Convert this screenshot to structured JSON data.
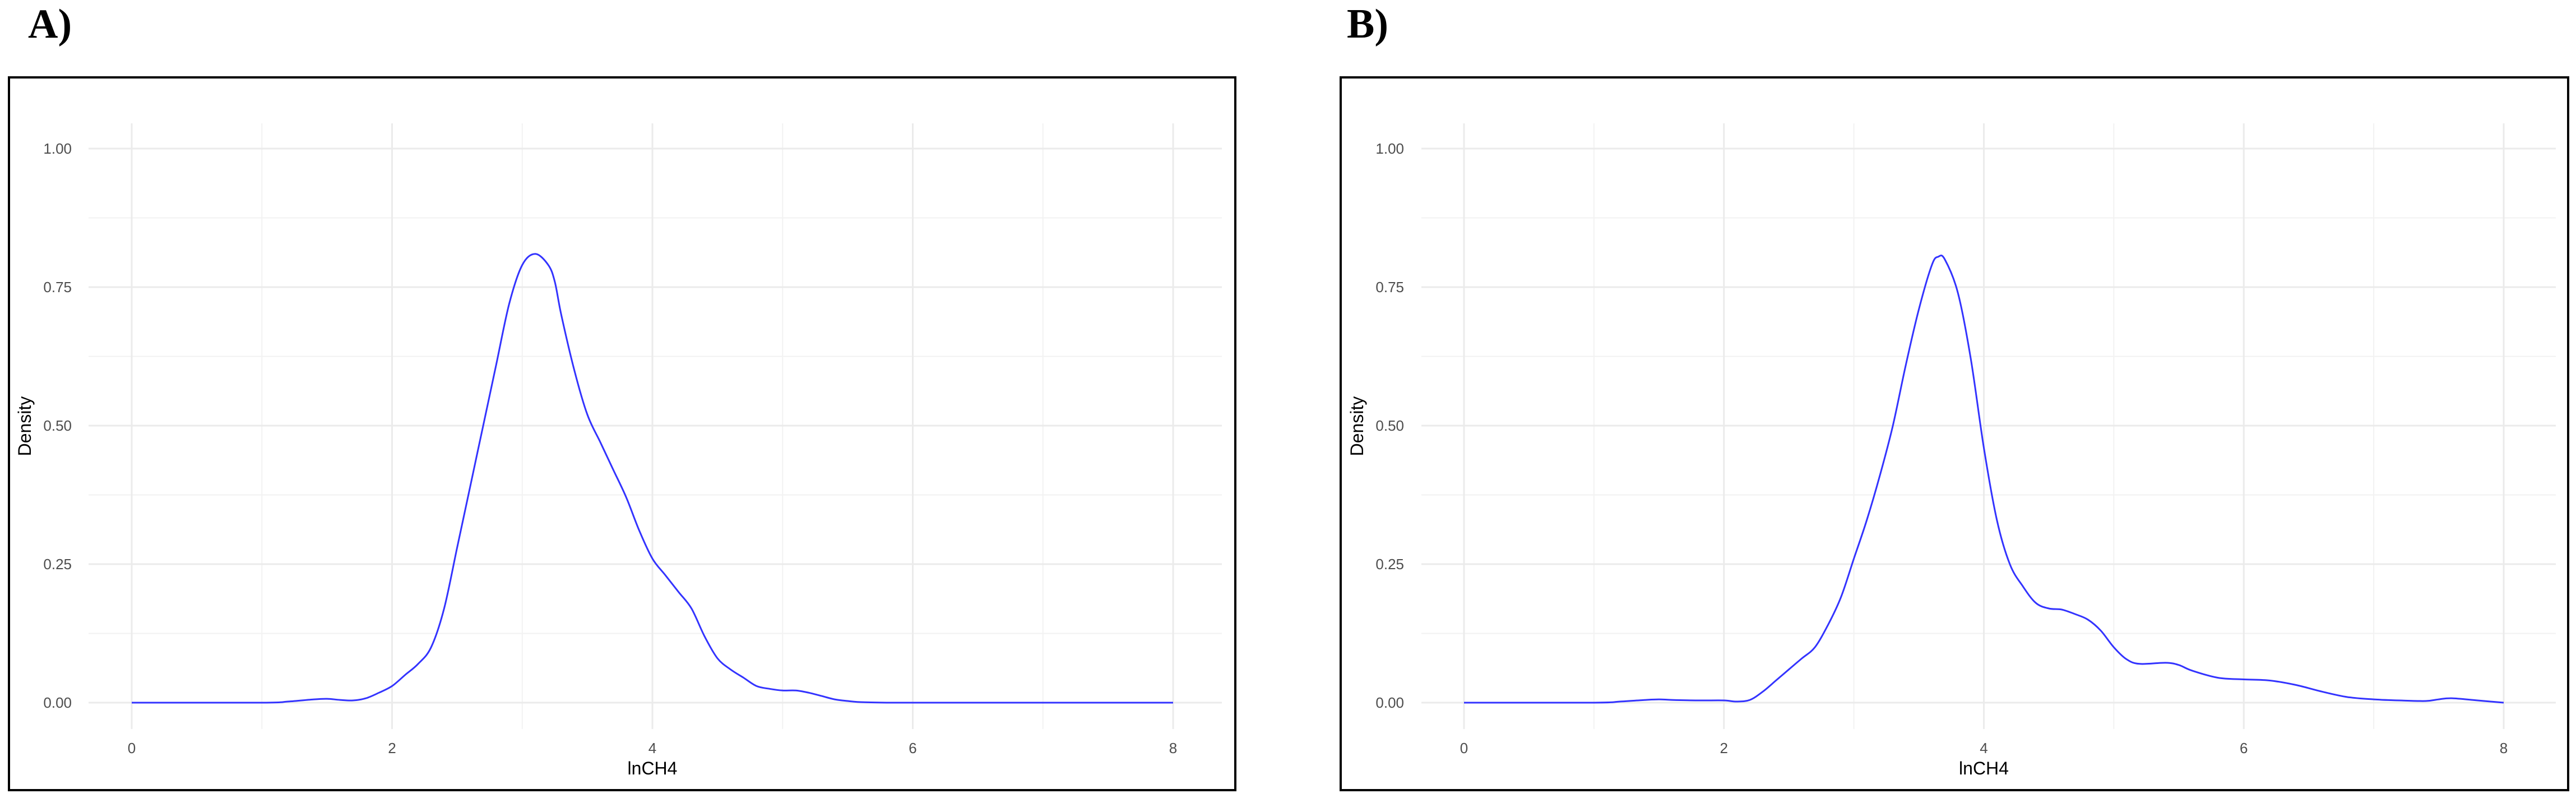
{
  "panels": [
    {
      "label": "A)"
    },
    {
      "label": "B)"
    }
  ],
  "chart_data": [
    {
      "type": "line",
      "panel": "A)",
      "title": "",
      "xlabel": "lnCH4",
      "ylabel": "Density",
      "xlim": [
        0,
        8
      ],
      "ylim": [
        0,
        1.0
      ],
      "x_ticks": [
        0,
        2,
        4,
        6,
        8
      ],
      "y_ticks": [
        0.0,
        0.25,
        0.5,
        0.75,
        1.0
      ],
      "x_tick_labels": [
        "0",
        "2",
        "4",
        "6",
        "8"
      ],
      "y_tick_labels": [
        "0.00",
        "0.25",
        "0.50",
        "0.75",
        "1.00"
      ],
      "grid": true,
      "line_color": "#3333ff",
      "series": [
        {
          "x": [
            0,
            1.0,
            1.2,
            1.4,
            1.5,
            1.6,
            1.7,
            1.8,
            1.9,
            2.0,
            2.1,
            2.2,
            2.3,
            2.4,
            2.5,
            2.6,
            2.7,
            2.8,
            2.9,
            3.0,
            3.1,
            3.2,
            3.25,
            3.3,
            3.4,
            3.5,
            3.6,
            3.7,
            3.8,
            3.9,
            4.0,
            4.1,
            4.2,
            4.3,
            4.4,
            4.5,
            4.6,
            4.7,
            4.8,
            4.9,
            5.0,
            5.1,
            5.2,
            5.3,
            5.4,
            5.5,
            5.6,
            5.8,
            6.0,
            7.0,
            8.0
          ],
          "y": [
            0,
            0,
            0.002,
            0.006,
            0.007,
            0.005,
            0.004,
            0.008,
            0.018,
            0.03,
            0.05,
            0.07,
            0.1,
            0.17,
            0.28,
            0.39,
            0.5,
            0.61,
            0.72,
            0.79,
            0.81,
            0.79,
            0.76,
            0.7,
            0.6,
            0.52,
            0.47,
            0.42,
            0.37,
            0.31,
            0.26,
            0.23,
            0.2,
            0.17,
            0.12,
            0.08,
            0.06,
            0.045,
            0.03,
            0.025,
            0.022,
            0.022,
            0.018,
            0.012,
            0.006,
            0.003,
            0.001,
            0,
            0,
            0,
            0
          ]
        }
      ]
    },
    {
      "type": "line",
      "panel": "B)",
      "title": "",
      "xlabel": "lnCH4",
      "ylabel": "Density",
      "xlim": [
        0,
        8
      ],
      "ylim": [
        0,
        1.0
      ],
      "x_ticks": [
        0,
        2,
        4,
        6,
        8
      ],
      "y_ticks": [
        0.0,
        0.25,
        0.5,
        0.75,
        1.0
      ],
      "x_tick_labels": [
        "0",
        "2",
        "4",
        "6",
        "8"
      ],
      "y_tick_labels": [
        "0.00",
        "0.25",
        "0.50",
        "0.75",
        "1.00"
      ],
      "grid": true,
      "line_color": "#3333ff",
      "series": [
        {
          "x": [
            0,
            1.0,
            1.2,
            1.4,
            1.5,
            1.6,
            1.8,
            2.0,
            2.1,
            2.2,
            2.3,
            2.4,
            2.5,
            2.6,
            2.7,
            2.8,
            2.9,
            3.0,
            3.1,
            3.2,
            3.3,
            3.4,
            3.5,
            3.6,
            3.65,
            3.7,
            3.8,
            3.9,
            4.0,
            4.1,
            4.2,
            4.3,
            4.4,
            4.5,
            4.6,
            4.7,
            4.8,
            4.9,
            5.0,
            5.1,
            5.2,
            5.4,
            5.5,
            5.6,
            5.8,
            6.0,
            6.2,
            6.4,
            6.6,
            6.8,
            7.0,
            7.2,
            7.4,
            7.5,
            7.6,
            7.8,
            8.0
          ],
          "y": [
            0,
            0,
            0.002,
            0.005,
            0.006,
            0.005,
            0.004,
            0.004,
            0.002,
            0.005,
            0.02,
            0.04,
            0.06,
            0.08,
            0.1,
            0.14,
            0.19,
            0.26,
            0.33,
            0.41,
            0.5,
            0.61,
            0.71,
            0.79,
            0.805,
            0.8,
            0.74,
            0.62,
            0.46,
            0.33,
            0.25,
            0.21,
            0.18,
            0.17,
            0.168,
            0.16,
            0.15,
            0.13,
            0.1,
            0.078,
            0.07,
            0.072,
            0.068,
            0.058,
            0.045,
            0.042,
            0.04,
            0.032,
            0.02,
            0.01,
            0.006,
            0.004,
            0.003,
            0.006,
            0.008,
            0.004,
            0
          ]
        }
      ]
    }
  ]
}
